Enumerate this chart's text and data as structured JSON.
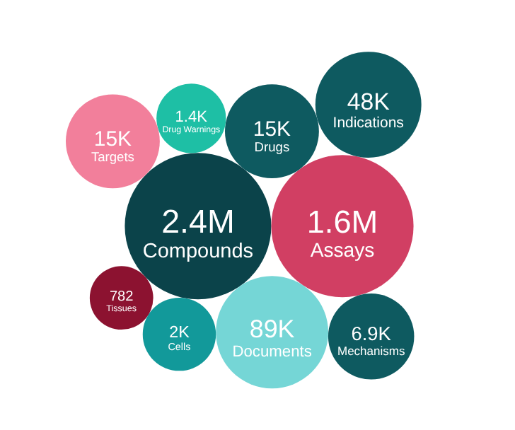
{
  "chart_data": {
    "type": "other",
    "categories": [
      "Compounds",
      "Assays",
      "Documents",
      "Drugs",
      "Drug Warnings",
      "Indications",
      "Cells",
      "Mechanisms",
      "Targets",
      "Tissues"
    ],
    "values": [
      2400000,
      1600000,
      89000,
      15000,
      1400,
      48000,
      2000,
      6900,
      15000,
      782
    ],
    "value_labels": [
      "2.4M",
      "1.6M",
      "89K",
      "15K",
      "1.4K",
      "48K",
      "2K",
      "6.9K",
      "15K",
      "782"
    ],
    "colors": [
      "#0b434a",
      "#d13f63",
      "#75d6d6",
      "#0e5a60",
      "#1ebfa5",
      "#0e5a60",
      "#12999a",
      "#0e5a60",
      "#f27f9b",
      "#8c1230"
    ]
  }
}
